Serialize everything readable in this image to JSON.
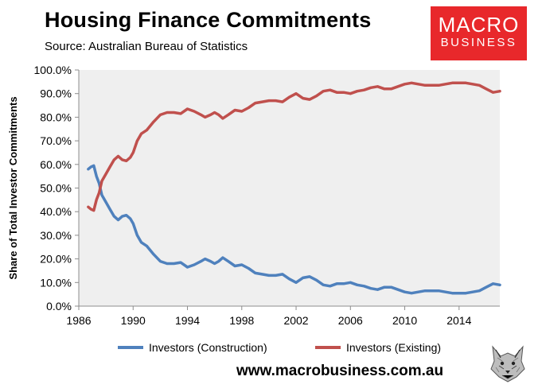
{
  "header": {
    "title": "Housing Finance Commitments",
    "subtitle": "Source: Australian Bureau of Statistics"
  },
  "logo": {
    "line1": "MACRO",
    "line2": "BUSINESS"
  },
  "footer": {
    "url": "www.macrobusiness.com.au"
  },
  "colors": {
    "construction": "#4f81bd",
    "existing": "#c0504d",
    "plot_bg": "#efefef",
    "logo_bg": "#e8282b"
  },
  "chart_data": {
    "type": "line",
    "title": "Housing Finance Commitments",
    "ylabel": "Share of Total Investor Commitments",
    "xlabel": "",
    "xlim": [
      1986,
      2017
    ],
    "ylim": [
      0,
      100
    ],
    "x_ticks": [
      1986,
      1990,
      1994,
      1998,
      2002,
      2006,
      2010,
      2014
    ],
    "y_ticks": [
      "0.0%",
      "10.0%",
      "20.0%",
      "30.0%",
      "40.0%",
      "50.0%",
      "60.0%",
      "70.0%",
      "80.0%",
      "90.0%",
      "100.0%"
    ],
    "legend_position": "bottom",
    "grid": false,
    "series": [
      {
        "name": "Investors (Construction)",
        "color": "#4f81bd",
        "points": [
          [
            1986.7,
            58
          ],
          [
            1986.9,
            59
          ],
          [
            1987.1,
            59.5
          ],
          [
            1987.3,
            55
          ],
          [
            1987.5,
            52
          ],
          [
            1987.7,
            47
          ],
          [
            1988.0,
            44
          ],
          [
            1988.3,
            41
          ],
          [
            1988.6,
            38
          ],
          [
            1988.9,
            36.5
          ],
          [
            1989.2,
            38
          ],
          [
            1989.5,
            38.5
          ],
          [
            1989.8,
            37
          ],
          [
            1990.0,
            35
          ],
          [
            1990.3,
            30
          ],
          [
            1990.6,
            27
          ],
          [
            1991.0,
            25.5
          ],
          [
            1991.5,
            22
          ],
          [
            1992.0,
            19
          ],
          [
            1992.5,
            18
          ],
          [
            1993.0,
            18
          ],
          [
            1993.5,
            18.5
          ],
          [
            1994.0,
            16.5
          ],
          [
            1994.5,
            17.5
          ],
          [
            1995.0,
            19
          ],
          [
            1995.3,
            20
          ],
          [
            1995.7,
            19
          ],
          [
            1996.0,
            18
          ],
          [
            1996.3,
            19
          ],
          [
            1996.6,
            20.5
          ],
          [
            1997.0,
            19
          ],
          [
            1997.5,
            17
          ],
          [
            1998.0,
            17.5
          ],
          [
            1998.5,
            16
          ],
          [
            1999.0,
            14
          ],
          [
            1999.5,
            13.5
          ],
          [
            2000.0,
            13
          ],
          [
            2000.5,
            13
          ],
          [
            2001.0,
            13.5
          ],
          [
            2001.5,
            11.5
          ],
          [
            2002.0,
            10
          ],
          [
            2002.5,
            12
          ],
          [
            2003.0,
            12.5
          ],
          [
            2003.5,
            11
          ],
          [
            2004.0,
            9
          ],
          [
            2004.5,
            8.5
          ],
          [
            2005.0,
            9.5
          ],
          [
            2005.5,
            9.5
          ],
          [
            2006.0,
            10
          ],
          [
            2006.5,
            9
          ],
          [
            2007.0,
            8.5
          ],
          [
            2007.5,
            7.5
          ],
          [
            2008.0,
            7
          ],
          [
            2008.5,
            8
          ],
          [
            2009.0,
            8
          ],
          [
            2009.5,
            7
          ],
          [
            2010.0,
            6
          ],
          [
            2010.5,
            5.5
          ],
          [
            2011.0,
            6
          ],
          [
            2011.5,
            6.5
          ],
          [
            2012.0,
            6.5
          ],
          [
            2012.5,
            6.5
          ],
          [
            2013.0,
            6
          ],
          [
            2013.5,
            5.5
          ],
          [
            2014.0,
            5.5
          ],
          [
            2014.5,
            5.5
          ],
          [
            2015.0,
            6
          ],
          [
            2015.5,
            6.5
          ],
          [
            2016.0,
            8
          ],
          [
            2016.5,
            9.5
          ],
          [
            2017.0,
            9
          ]
        ]
      },
      {
        "name": "Investors (Existing)",
        "color": "#c0504d",
        "points": [
          [
            1986.7,
            42
          ],
          [
            1986.9,
            41
          ],
          [
            1987.1,
            40.5
          ],
          [
            1987.3,
            45
          ],
          [
            1987.5,
            48
          ],
          [
            1987.7,
            53
          ],
          [
            1988.0,
            56
          ],
          [
            1988.3,
            59
          ],
          [
            1988.6,
            62
          ],
          [
            1988.9,
            63.5
          ],
          [
            1989.2,
            62
          ],
          [
            1989.5,
            61.5
          ],
          [
            1989.8,
            63
          ],
          [
            1990.0,
            65
          ],
          [
            1990.3,
            70
          ],
          [
            1990.6,
            73
          ],
          [
            1991.0,
            74.5
          ],
          [
            1991.5,
            78
          ],
          [
            1992.0,
            81
          ],
          [
            1992.5,
            82
          ],
          [
            1993.0,
            82
          ],
          [
            1993.5,
            81.5
          ],
          [
            1994.0,
            83.5
          ],
          [
            1994.5,
            82.5
          ],
          [
            1995.0,
            81
          ],
          [
            1995.3,
            80
          ],
          [
            1995.7,
            81
          ],
          [
            1996.0,
            82
          ],
          [
            1996.3,
            81
          ],
          [
            1996.6,
            79.5
          ],
          [
            1997.0,
            81
          ],
          [
            1997.5,
            83
          ],
          [
            1998.0,
            82.5
          ],
          [
            1998.5,
            84
          ],
          [
            1999.0,
            86
          ],
          [
            1999.5,
            86.5
          ],
          [
            2000.0,
            87
          ],
          [
            2000.5,
            87
          ],
          [
            2001.0,
            86.5
          ],
          [
            2001.5,
            88.5
          ],
          [
            2002.0,
            90
          ],
          [
            2002.5,
            88
          ],
          [
            2003.0,
            87.5
          ],
          [
            2003.5,
            89
          ],
          [
            2004.0,
            91
          ],
          [
            2004.5,
            91.5
          ],
          [
            2005.0,
            90.5
          ],
          [
            2005.5,
            90.5
          ],
          [
            2006.0,
            90
          ],
          [
            2006.5,
            91
          ],
          [
            2007.0,
            91.5
          ],
          [
            2007.5,
            92.5
          ],
          [
            2008.0,
            93
          ],
          [
            2008.5,
            92
          ],
          [
            2009.0,
            92
          ],
          [
            2009.5,
            93
          ],
          [
            2010.0,
            94
          ],
          [
            2010.5,
            94.5
          ],
          [
            2011.0,
            94
          ],
          [
            2011.5,
            93.5
          ],
          [
            2012.0,
            93.5
          ],
          [
            2012.5,
            93.5
          ],
          [
            2013.0,
            94
          ],
          [
            2013.5,
            94.5
          ],
          [
            2014.0,
            94.5
          ],
          [
            2014.5,
            94.5
          ],
          [
            2015.0,
            94
          ],
          [
            2015.5,
            93.5
          ],
          [
            2016.0,
            92
          ],
          [
            2016.5,
            90.5
          ],
          [
            2017.0,
            91
          ]
        ]
      }
    ]
  }
}
